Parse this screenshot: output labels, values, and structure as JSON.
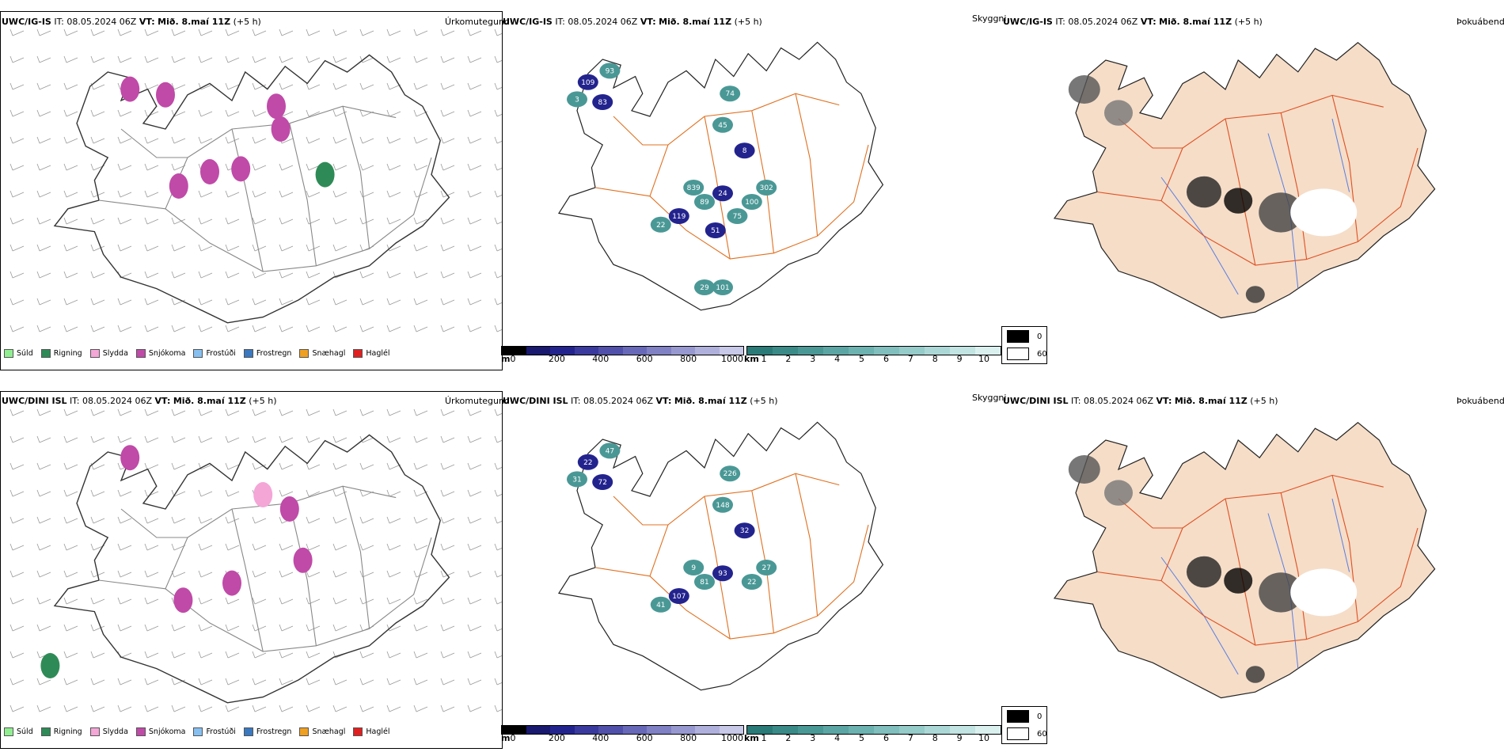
{
  "rows": [
    {
      "ptype": {
        "model_bold": "UWC/IG-IS",
        "it_label": "IT:",
        "it_value": "08.05.2024 06Z",
        "vt_label": "VT:",
        "vt_value": "Mið. 8.maí 11Z",
        "lead": "(+5 h)",
        "title_right": "Úrkomutegund"
      },
      "vis": {
        "model_bold": "UWC/IG-IS",
        "it_label": "IT:",
        "it_value": "08.05.2024 06Z",
        "vt_label": "VT:",
        "vt_value": "Mið. 8.maí 11Z",
        "lead": "(+5 h)",
        "title_right": "Skyggni",
        "labels": [
          "109",
          "93",
          "3",
          "83",
          "74",
          "45",
          "8",
          "839",
          "89",
          "24",
          "100",
          "302",
          "119",
          "22",
          "75",
          "51",
          "29",
          "101"
        ]
      },
      "fog": {
        "model_bold": "UWC/IG-IS",
        "it_label": "IT:",
        "it_value": "08.05.2024 06Z",
        "vt_label": "VT:",
        "vt_value": "Mið. 8.maí 11Z",
        "lead": "(+5 h)",
        "title_right": "Þokuábendi"
      }
    },
    {
      "ptype": {
        "model_bold": "UWC/DINI ISL",
        "it_label": "IT:",
        "it_value": "08.05.2024 06Z",
        "vt_label": "VT:",
        "vt_value": "Mið. 8.maí 11Z",
        "lead": "(+5 h)",
        "title_right": "Úrkomutegund"
      },
      "vis": {
        "model_bold": "UWC/DINI ISL",
        "it_label": "IT:",
        "it_value": "08.05.2024 06Z",
        "vt_label": "VT:",
        "vt_value": "Mið. 8.maí 11Z",
        "lead": "(+5 h)",
        "title_right": "Skyggni",
        "labels": [
          "22",
          "47",
          "31",
          "72",
          "226",
          "148",
          "32",
          "9",
          "81",
          "93",
          "22",
          "27",
          "107",
          "41"
        ]
      },
      "fog": {
        "model_bold": "UWC/DINI ISL",
        "it_label": "IT:",
        "it_value": "08.05.2024 06Z",
        "vt_label": "VT:",
        "vt_value": "Mið. 8.maí 11Z",
        "lead": "(+5 h)",
        "title_right": "Þokuábendi"
      }
    }
  ],
  "ptype_legend": [
    {
      "label": "Súld",
      "color": "#90ee90"
    },
    {
      "label": "Rigning",
      "color": "#2e8b57"
    },
    {
      "label": "Slydda",
      "color": "#f4a6d7"
    },
    {
      "label": "Snjókoma",
      "color": "#c04aa8"
    },
    {
      "label": "Frostúði",
      "color": "#87c0f0"
    },
    {
      "label": "Frostregn",
      "color": "#3a78c0"
    },
    {
      "label": "Snæhagl",
      "color": "#f0a020"
    },
    {
      "label": "Haglél",
      "color": "#e02020"
    }
  ],
  "vis_scale_m": {
    "unit": "m",
    "ticks": [
      "0",
      "200",
      "400",
      "600",
      "800",
      "1000"
    ],
    "colors": [
      "#000000",
      "#191970",
      "#23238e",
      "#3a3a9e",
      "#5050aa",
      "#6868b8",
      "#8080c4",
      "#9898d0",
      "#b0b0dc",
      "#c8c8e8"
    ]
  },
  "vis_scale_km": {
    "unit": "km",
    "ticks": [
      "1",
      "2",
      "3",
      "4",
      "5",
      "6",
      "7",
      "8",
      "9",
      "10"
    ],
    "colors": [
      "#2a7a78",
      "#3a8a88",
      "#4a9896",
      "#5ba6a4",
      "#6cb2b0",
      "#80bfbd",
      "#95cbc9",
      "#abd8d6",
      "#c2e4e2",
      "#daf0ef"
    ]
  },
  "fog_legend": {
    "high": "0",
    "low": "60"
  },
  "colors": {
    "coast": "#222222",
    "roads_ptype": "#888888",
    "roads_vis": "#e07020",
    "roads_fog": "#e05020",
    "land_fog": "#f5ddc8",
    "rivers_fog": "#5a7ee0"
  }
}
